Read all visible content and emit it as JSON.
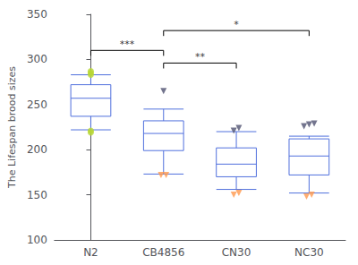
{
  "chart_data": {
    "type": "boxplot",
    "categories": [
      "N2",
      "CB4856",
      "CN30",
      "NC30"
    ],
    "ylabel": "The Lifespan brood sizes",
    "ylim": [
      100,
      350
    ],
    "yticks": [
      100,
      150,
      200,
      250,
      300,
      350
    ],
    "grid": false,
    "boxes": [
      {
        "whisker_low": 222,
        "q1": 237,
        "median": 257,
        "q3": 272,
        "whisker_high": 283
      },
      {
        "whisker_low": 173,
        "q1": 199,
        "median": 218,
        "q3": 232,
        "whisker_high": 245
      },
      {
        "whisker_low": 156,
        "q1": 170,
        "median": 184,
        "q3": 202,
        "whisker_high": 220
      },
      {
        "whisker_low": 152,
        "q1": 172,
        "median": 193,
        "q3": 212,
        "whisker_high": 215
      }
    ],
    "points": [
      {
        "marker": "circle",
        "values": [
          [
            283,
            285,
            287,
            219,
            221
          ],
          [],
          [],
          []
        ]
      },
      {
        "marker": "triangle_down",
        "values": [
          [],
          [
            265
          ],
          [
            221,
            224
          ],
          [
            226,
            228,
            229
          ]
        ]
      },
      {
        "marker": "triangle_down",
        "values": [
          [],
          [
            172,
            172
          ],
          [
            150,
            152
          ],
          [
            148,
            150
          ]
        ]
      }
    ],
    "annotations": [
      {
        "from": "N2",
        "to": "CB4856",
        "y": 310,
        "label": "***"
      },
      {
        "from": "CB4856",
        "to": "CN30",
        "y": 296,
        "label": "**"
      },
      {
        "from": "CB4856",
        "to": "NC30",
        "y": 332,
        "label": "*"
      }
    ]
  }
}
